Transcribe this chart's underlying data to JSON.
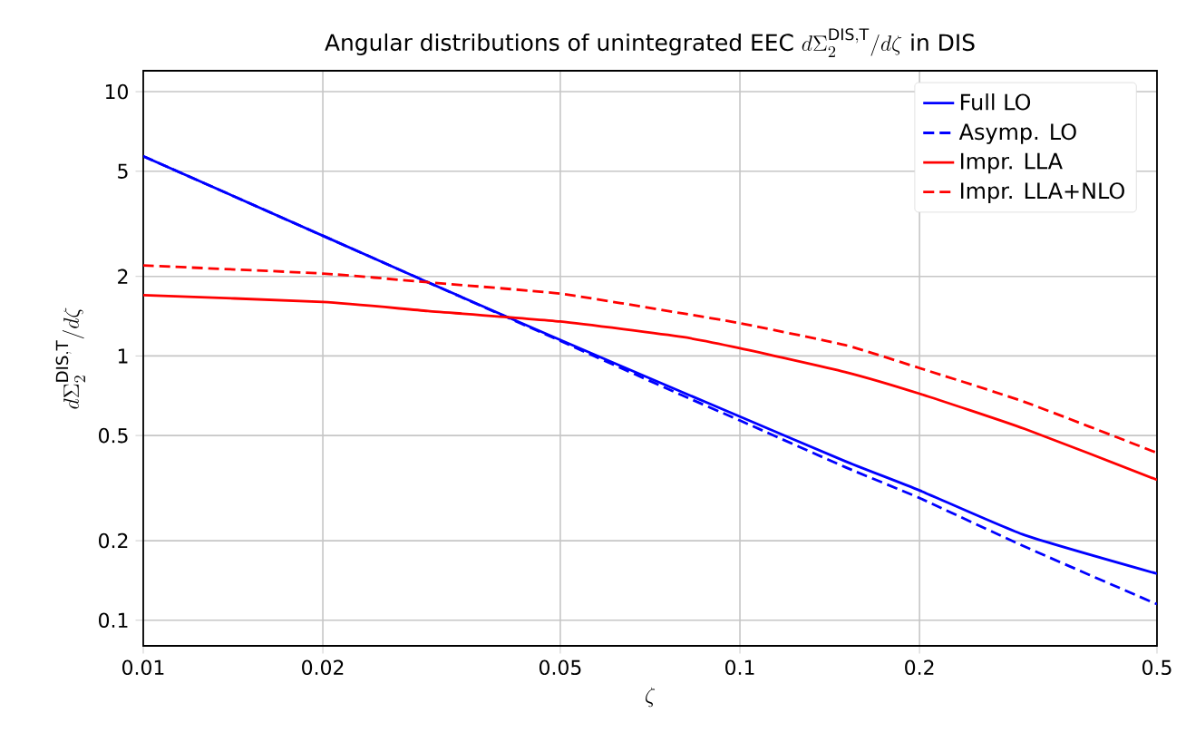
{
  "chart_data": {
    "type": "line",
    "title": "\\text{Angular distributions of unintegrated EEC }d\\Sigma_2^{\\mathrm{DIS,T}}/d\\zeta\\text{ in DIS}",
    "xlabel": "\\zeta",
    "ylabel": "d\\Sigma_2^{\\mathrm{DIS,T}}/d\\zeta",
    "x": [
      0.01,
      0.02,
      0.03,
      0.05,
      0.08,
      0.1,
      0.15,
      0.2,
      0.3,
      0.5
    ],
    "series": [
      {
        "name": "Full LO",
        "color": "#0000ff",
        "line_style": "solid",
        "values": [
          5.7,
          2.85,
          1.9,
          1.15,
          0.73,
          0.59,
          0.4,
          0.31,
          0.21,
          0.15
        ]
      },
      {
        "name": "Asymp. LO",
        "color": "#0000ff",
        "line_style": "dashed",
        "values": [
          5.7,
          2.85,
          1.9,
          1.14,
          0.71,
          0.57,
          0.38,
          0.29,
          0.19,
          0.115
        ]
      },
      {
        "name": "Impr. LLA",
        "color": "#ff0000",
        "line_style": "solid",
        "values": [
          1.7,
          1.6,
          1.48,
          1.35,
          1.18,
          1.07,
          0.87,
          0.72,
          0.53,
          0.34
        ]
      },
      {
        "name": "Impr. LLA+NLO",
        "color": "#ff0000",
        "line_style": "dashed",
        "values": [
          2.2,
          2.05,
          1.9,
          1.72,
          1.45,
          1.33,
          1.1,
          0.9,
          0.67,
          0.43
        ]
      }
    ],
    "log": "xy",
    "xlim": [
      0.01,
      0.5
    ],
    "ylim": [
      0.08,
      12
    ],
    "xticks": [
      0.01,
      0.02,
      0.05,
      0.1,
      0.2,
      0.5
    ],
    "yticks": [
      0.1,
      0.2,
      0.5,
      1,
      2,
      5,
      10
    ],
    "grid": true,
    "legend": "top right",
    "marker": "none"
  }
}
